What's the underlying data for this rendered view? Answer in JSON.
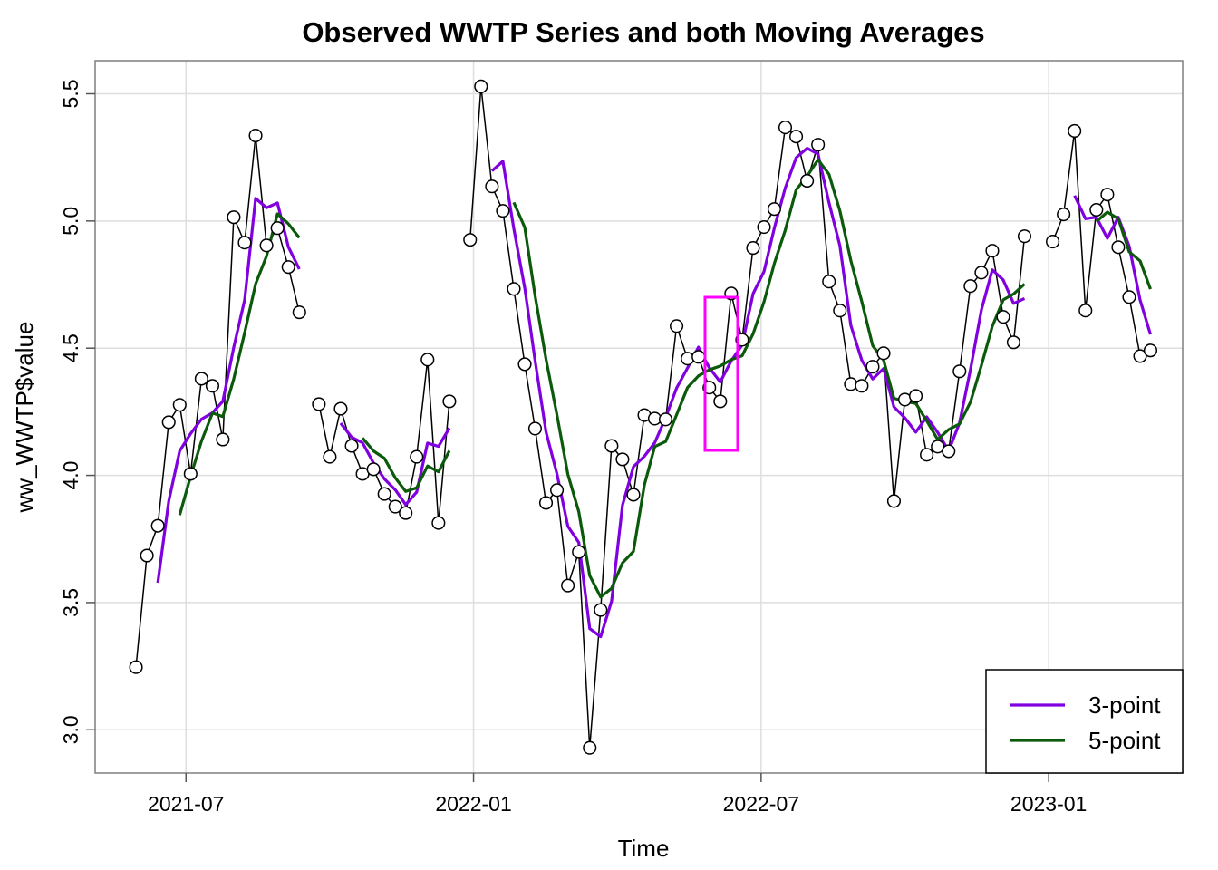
{
  "chart_data": {
    "type": "line",
    "title": "Observed WWTP Series and both Moving Averages",
    "x_label": "Time",
    "y_label": "ww_WWTP$value",
    "color": "#000000",
    "x": [
      2021.413,
      2021.432,
      2021.451,
      2021.47,
      2021.489,
      2021.508,
      2021.527,
      2021.546,
      2021.564,
      2021.583,
      2021.602,
      2021.621,
      2021.64,
      2021.659,
      2021.678,
      2021.697,
      null,
      2021.731,
      2021.75,
      2021.769,
      2021.788,
      2021.807,
      2021.826,
      2021.845,
      2021.864,
      2021.882,
      2021.901,
      2021.92,
      2021.939,
      2021.958,
      null,
      2021.994,
      2022.013,
      2022.032,
      2022.051,
      2022.07,
      2022.089,
      2022.107,
      2022.126,
      2022.145,
      2022.164,
      2022.183,
      2022.202,
      2022.221,
      2022.24,
      2022.259,
      2022.278,
      2022.297,
      2022.315,
      2022.334,
      2022.353,
      2022.372,
      2022.391,
      2022.41,
      2022.429,
      2022.448,
      2022.467,
      2022.486,
      2022.505,
      2022.523,
      2022.542,
      2022.561,
      2022.58,
      2022.599,
      2022.618,
      2022.637,
      2022.656,
      2022.675,
      2022.694,
      2022.713,
      2022.731,
      2022.75,
      2022.769,
      2022.788,
      2022.807,
      2022.826,
      2022.845,
      2022.864,
      2022.883,
      2022.902,
      2022.921,
      2022.939,
      2022.958,
      null,
      2023.007,
      2023.026,
      2023.045,
      2023.064,
      2023.083,
      2023.102,
      2023.121,
      2023.14,
      2023.159,
      2023.177
    ],
    "values": [
      3.246,
      3.685,
      3.802,
      4.209,
      4.277,
      4.006,
      4.38,
      4.352,
      4.141,
      5.015,
      4.915,
      5.336,
      4.904,
      4.972,
      4.819,
      4.641,
      null,
      4.28,
      4.073,
      4.262,
      4.116,
      4.006,
      4.024,
      3.927,
      3.877,
      3.852,
      4.073,
      4.455,
      3.813,
      4.291,
      null,
      4.926,
      5.529,
      5.136,
      5.04,
      4.733,
      4.437,
      4.184,
      3.892,
      3.942,
      3.567,
      3.699,
      2.929,
      3.471,
      4.116,
      4.063,
      3.924,
      4.237,
      4.223,
      4.22,
      4.587,
      4.459,
      4.466,
      4.345,
      4.291,
      4.715,
      4.533,
      4.894,
      4.976,
      5.047,
      5.368,
      5.332,
      5.158,
      5.3,
      4.762,
      4.648,
      4.359,
      4.352,
      4.427,
      4.48,
      3.899,
      4.298,
      4.312,
      4.081,
      4.113,
      4.095,
      4.409,
      4.744,
      4.797,
      4.883,
      4.623,
      4.523,
      4.94,
      null,
      4.919,
      5.026,
      5.354,
      4.648,
      5.044,
      5.104,
      4.897,
      4.701,
      4.469,
      4.491
    ],
    "series": [
      {
        "name": "3-point",
        "color": "#8000E0",
        "values": [
          null,
          null,
          3.578,
          3.899,
          4.096,
          4.164,
          4.221,
          4.246,
          4.291,
          4.503,
          4.69,
          5.089,
          5.052,
          5.071,
          4.898,
          4.811,
          null,
          null,
          null,
          4.205,
          4.15,
          4.128,
          4.049,
          3.986,
          3.943,
          3.885,
          3.934,
          4.127,
          4.114,
          4.186,
          null,
          null,
          null,
          5.197,
          5.235,
          4.97,
          4.737,
          4.451,
          4.171,
          4.006,
          3.8,
          3.736,
          3.398,
          3.366,
          3.505,
          3.883,
          4.034,
          4.075,
          4.128,
          4.227,
          4.343,
          4.422,
          4.504,
          4.423,
          4.367,
          4.45,
          4.513,
          4.714,
          4.801,
          4.972,
          5.13,
          5.249,
          5.286,
          5.263,
          5.073,
          4.903,
          4.59,
          4.453,
          4.379,
          4.42,
          4.269,
          4.226,
          4.17,
          4.23,
          4.169,
          4.096,
          4.206,
          4.416,
          4.65,
          4.808,
          4.768,
          4.676,
          4.695,
          null,
          null,
          null,
          5.1,
          5.009,
          5.015,
          4.932,
          5.015,
          4.901,
          4.689,
          4.554
        ]
      },
      {
        "name": "5-point",
        "color": "#0B5A0B",
        "values": [
          null,
          null,
          null,
          null,
          3.844,
          3.996,
          4.135,
          4.245,
          4.231,
          4.379,
          4.561,
          4.752,
          4.862,
          5.028,
          4.989,
          4.934,
          null,
          null,
          null,
          null,
          null,
          4.147,
          4.096,
          4.067,
          3.99,
          3.937,
          3.951,
          4.037,
          4.014,
          4.097,
          null,
          null,
          null,
          null,
          null,
          5.073,
          4.975,
          4.706,
          4.457,
          4.238,
          4.004,
          3.857,
          3.606,
          3.522,
          3.556,
          3.656,
          3.701,
          3.962,
          4.113,
          4.133,
          4.238,
          4.345,
          4.391,
          4.415,
          4.43,
          4.455,
          4.47,
          4.556,
          4.682,
          4.833,
          4.964,
          5.123,
          5.176,
          5.241,
          5.184,
          5.04,
          4.845,
          4.684,
          4.51,
          4.453,
          4.303,
          4.291,
          4.283,
          4.214,
          4.141,
          4.18,
          4.202,
          4.288,
          4.432,
          4.586,
          4.69,
          4.713,
          4.752,
          null,
          null,
          null,
          null,
          null,
          4.998,
          5.035,
          5.009,
          4.879,
          4.843,
          4.732
        ]
      }
    ],
    "xlim": [
      2021.342,
      2023.233
    ],
    "ylim": [
      2.83,
      5.63
    ],
    "xticks": [
      {
        "value": 2021.5,
        "label": "2021-07"
      },
      {
        "value": 2022.0,
        "label": "2022-01"
      },
      {
        "value": 2022.5,
        "label": "2022-07"
      },
      {
        "value": 2023.0,
        "label": "2023-01"
      }
    ],
    "yticks": [
      {
        "value": 3.0,
        "label": "3.0"
      },
      3.5,
      {
        "value": 4.0,
        "label": "4.0"
      },
      4.5,
      {
        "value": 5.0,
        "label": "5.0"
      },
      5.5
    ],
    "grid": true,
    "legend": "bottomright"
  }
}
